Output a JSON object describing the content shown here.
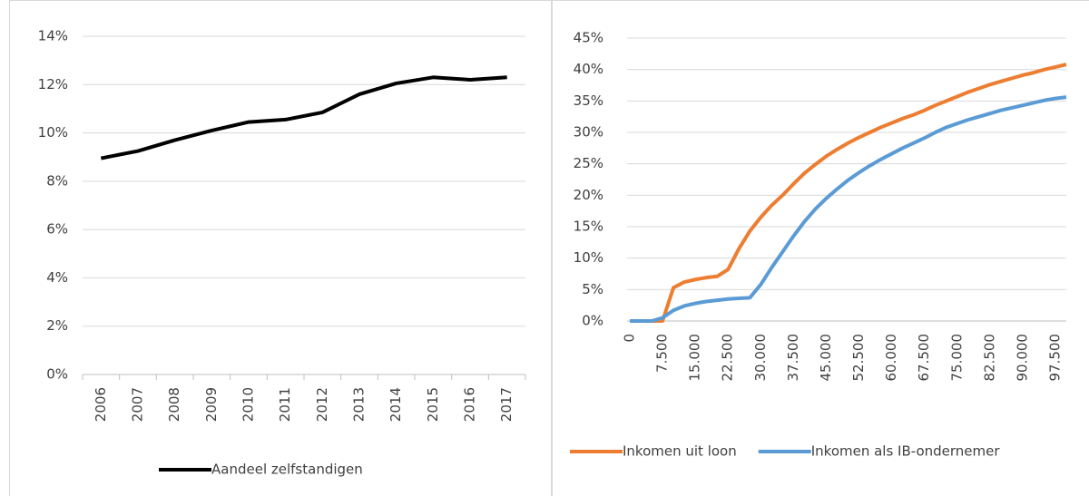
{
  "chart_data": [
    {
      "type": "line",
      "categories": [
        "2006",
        "2007",
        "2008",
        "2009",
        "2010",
        "2011",
        "2012",
        "2013",
        "2014",
        "2015",
        "2016",
        "2017"
      ],
      "series": [
        {
          "name": "Aandeel zelfstandigen",
          "color": "#000000",
          "values": [
            8.95,
            9.25,
            9.7,
            10.1,
            10.45,
            10.55,
            10.85,
            11.6,
            12.05,
            12.3,
            12.2,
            12.3
          ]
        }
      ],
      "ylim": [
        0,
        14
      ],
      "yticks": [
        {
          "value": 0,
          "label": "0%"
        },
        {
          "value": 2,
          "label": "2%"
        },
        {
          "value": 4,
          "label": "4%"
        },
        {
          "value": 6,
          "label": "6%"
        },
        {
          "value": 8,
          "label": "8%"
        },
        {
          "value": 10,
          "label": "10%"
        },
        {
          "value": 12,
          "label": "12%"
        },
        {
          "value": 14,
          "label": "14%"
        }
      ],
      "grid": true,
      "legend": "bottom"
    },
    {
      "type": "line",
      "x": [
        0,
        2500,
        5000,
        7500,
        10000,
        12500,
        15000,
        17500,
        20000,
        22500,
        25000,
        27500,
        30000,
        32500,
        35000,
        37500,
        40000,
        42500,
        45000,
        47500,
        50000,
        52500,
        55000,
        57500,
        60000,
        62500,
        65000,
        67500,
        70000,
        72500,
        75000,
        77500,
        80000,
        82500,
        85000,
        87500,
        90000,
        92500,
        95000,
        97500,
        100000
      ],
      "series": [
        {
          "name": "Inkomen uit loon",
          "color": "#ed7d31",
          "values": [
            0,
            0,
            0,
            0,
            5.3,
            6.2,
            6.6,
            6.9,
            7.1,
            8.2,
            11.5,
            14.3,
            16.5,
            18.4,
            20.0,
            21.8,
            23.5,
            24.9,
            26.2,
            27.3,
            28.3,
            29.2,
            30.0,
            30.8,
            31.5,
            32.2,
            32.8,
            33.5,
            34.3,
            35.0,
            35.7,
            36.4,
            37.0,
            37.6,
            38.1,
            38.6,
            39.1,
            39.5,
            40.0,
            40.4,
            40.8
          ]
        },
        {
          "name": "Inkomen als IB-ondernemer",
          "color": "#5b9bd5",
          "values": [
            0,
            0,
            0,
            0.5,
            1.7,
            2.4,
            2.8,
            3.1,
            3.3,
            3.5,
            3.6,
            3.7,
            5.8,
            8.5,
            11.0,
            13.5,
            15.8,
            17.8,
            19.5,
            21.0,
            22.4,
            23.6,
            24.7,
            25.7,
            26.6,
            27.5,
            28.3,
            29.1,
            30.0,
            30.8,
            31.4,
            32.0,
            32.5,
            33.0,
            33.5,
            33.9,
            34.3,
            34.7,
            35.1,
            35.4,
            35.6
          ]
        }
      ],
      "xlim": [
        0,
        100000
      ],
      "xticks": [
        0,
        {
          "value": 7500,
          "label": "7.500"
        },
        {
          "value": 15000,
          "label": "15.000"
        },
        {
          "value": 22500,
          "label": "22.500"
        },
        {
          "value": 30000,
          "label": "30.000"
        },
        {
          "value": 37500,
          "label": "37.500"
        },
        {
          "value": 45000,
          "label": "45.000"
        },
        {
          "value": 52500,
          "label": "52.500"
        },
        {
          "value": 60000,
          "label": "60.000"
        },
        {
          "value": 67500,
          "label": "67.500"
        },
        {
          "value": 75000,
          "label": "75.000"
        },
        {
          "value": 82500,
          "label": "82.500"
        },
        {
          "value": 90000,
          "label": "90.000"
        },
        {
          "value": 97500,
          "label": "97.500"
        }
      ],
      "ylim": [
        0,
        45
      ],
      "yticks": [
        {
          "value": 0,
          "label": "0%"
        },
        {
          "value": 5,
          "label": "5%"
        },
        {
          "value": 10,
          "label": "10%"
        },
        {
          "value": 15,
          "label": "15%"
        },
        {
          "value": 20,
          "label": "20%"
        },
        {
          "value": 25,
          "label": "25%"
        },
        {
          "value": 30,
          "label": "30%"
        },
        {
          "value": 35,
          "label": "35%"
        },
        {
          "value": 40,
          "label": "40%"
        },
        {
          "value": 45,
          "label": "45%"
        }
      ],
      "grid": true,
      "legend": "bottom"
    }
  ]
}
